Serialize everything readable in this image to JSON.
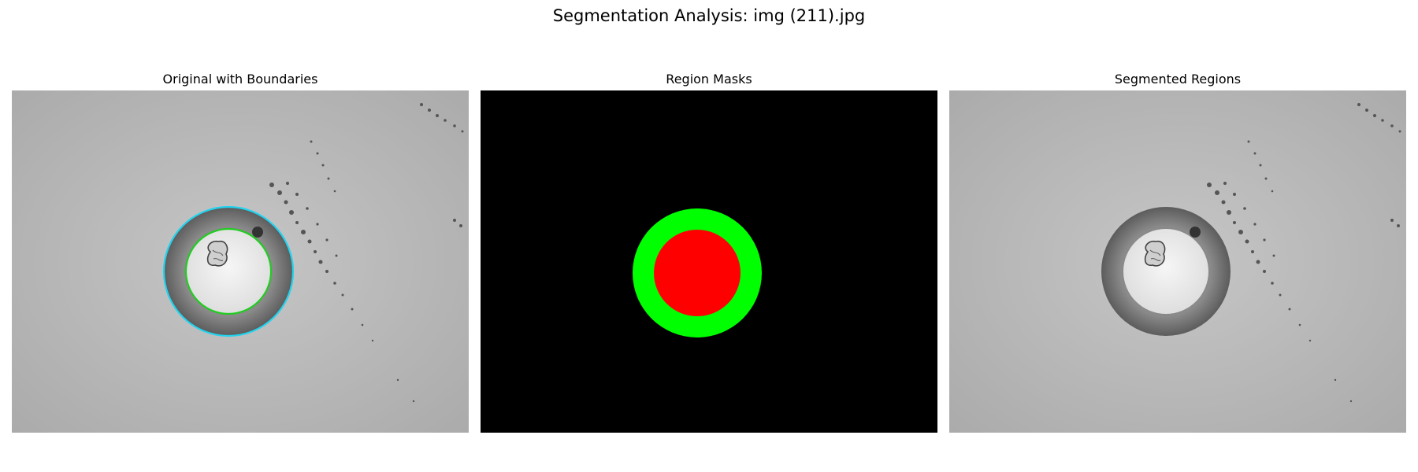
{
  "figure": {
    "title": "Segmentation Analysis: img (211).jpg"
  },
  "panels": [
    {
      "title": "Original with Boundaries"
    },
    {
      "title": "Region Masks"
    },
    {
      "title": "Segmented Regions"
    }
  ],
  "colors": {
    "background_gray": "#c0c0c0",
    "ring_gray": "#707070",
    "well_white": "#eeeeee",
    "outer_boundary": "#22d3ee",
    "inner_boundary": "#22cc22",
    "mask_background": "#000000",
    "mask_ring": "#00ff00",
    "mask_core": "#ff0000"
  }
}
